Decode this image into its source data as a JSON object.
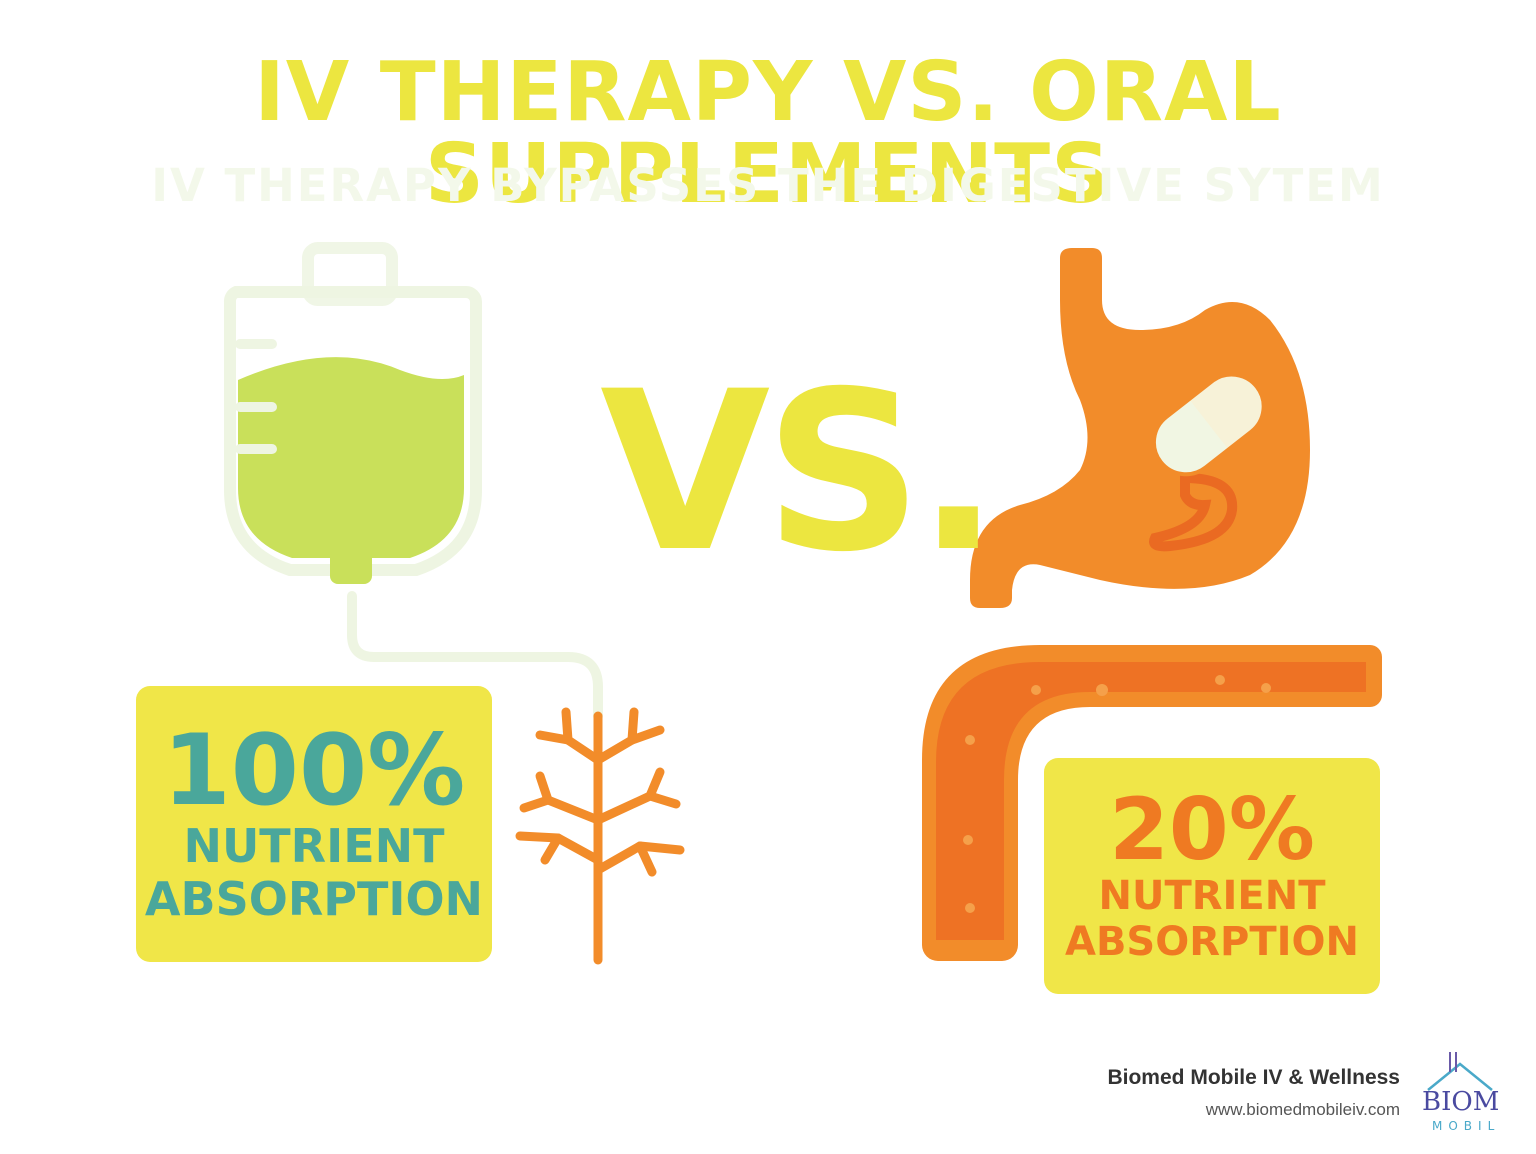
{
  "header": {
    "title": "IV THERAPY VS. ORAL SUPPLEMENTS",
    "subtitle": "IV THERAPY BYPASSES THE DIGESTIVE SYTEM"
  },
  "center": {
    "vs_label": "VS."
  },
  "iv_side": {
    "percent": "100%",
    "label_line1": "NUTRIENT",
    "label_line2": "ABSORPTION",
    "absorption_value": 100
  },
  "oral_side": {
    "percent": "20%",
    "label_line1": "NUTRIENT",
    "label_line2": "ABSORPTION",
    "absorption_value": 20
  },
  "footer": {
    "company": "Biomed Mobile IV & Wellness",
    "website": "www.biomedmobileiv.com"
  },
  "logo": {
    "text_top": "BIOM",
    "text_bottom": "MOBIL"
  },
  "colors": {
    "title_yellow": "#ece640",
    "box_yellow": "#f0e648",
    "teal": "#4aa79b",
    "orange": "#ef7a22",
    "lime": "#c9e05a"
  },
  "icons": [
    "iv-bag-icon",
    "capillary-tree-icon",
    "stomach-icon",
    "pill-icon",
    "intestine-icon"
  ]
}
